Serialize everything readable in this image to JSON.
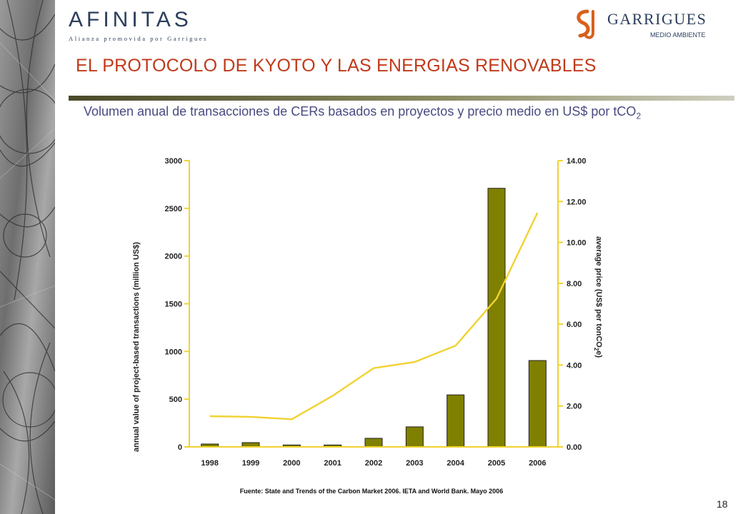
{
  "header": {
    "brand_left": "AFINITAS",
    "brand_left_tagline": "Alianza promovida por Garrigues",
    "brand_right": "GARRIGUES",
    "brand_right_sub": "MEDIO AMBIENTE"
  },
  "slide": {
    "title": "EL PROTOCOLO DE KYOTO Y LAS ENERGIAS RENOVABLES",
    "subtitle_main": "Volumen anual de transacciones de CERs basados en proyectos y precio medio en US$ por tCO",
    "subtitle_sub": "2",
    "source": "Fuente: State and Trends of the Carbon Market 2006. IETA and World Bank. Mayo 2006",
    "page_number": "18"
  },
  "colors": {
    "title": "#c03a1a",
    "subtitle": "#4a4a82",
    "bar_fill": "#808000",
    "price_line": "#f2d230",
    "axis": "#f2d230",
    "rule": "#727244"
  },
  "chart_data": {
    "type": "bar",
    "categories": [
      "1998",
      "1999",
      "2000",
      "2001",
      "2002",
      "2003",
      "2004",
      "2005",
      "2006"
    ],
    "series": [
      {
        "values": [
          30,
          45,
          20,
          20,
          90,
          210,
          545,
          2710,
          905
        ],
        "axis": "left",
        "render": "bar"
      },
      {
        "values": [
          1.5,
          1.47,
          1.35,
          2.5,
          3.85,
          4.15,
          4.95,
          7.25,
          11.45
        ],
        "axis": "right",
        "render": "line"
      }
    ],
    "ylabel": "annual value of project-based transactions (million US$)",
    "ylabel2_main": "average price (US$ per tonCO",
    "ylabel2_sub": "2",
    "ylabel2_end": "e)",
    "ylim": [
      0,
      3000
    ],
    "ylim2": [
      0,
      14
    ],
    "yticks": [
      "0",
      "500",
      "1000",
      "1500",
      "2000",
      "2500",
      "3000"
    ],
    "yticks2": [
      "0.00",
      "2.00",
      "4.00",
      "6.00",
      "8.00",
      "10.00",
      "12.00",
      "14.00"
    ],
    "grid": false,
    "legend": "none"
  }
}
